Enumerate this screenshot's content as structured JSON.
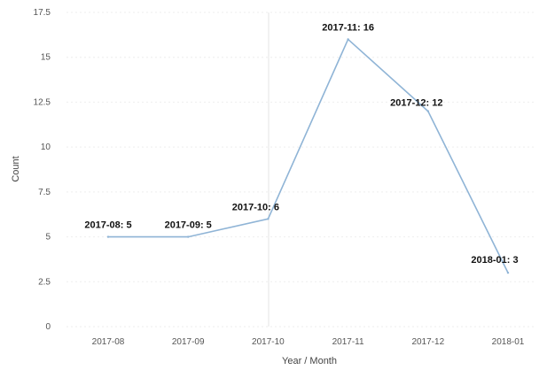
{
  "chart_data": {
    "type": "line",
    "xlabel": "Year / Month",
    "ylabel": "Count",
    "categories": [
      "2017-08",
      "2017-09",
      "2017-10",
      "2017-11",
      "2017-12",
      "2018-01"
    ],
    "series": [
      {
        "values": [
          5,
          5,
          6,
          16,
          12,
          3
        ]
      }
    ],
    "data_labels": [
      "2017-08: 5",
      "2017-09: 5",
      "2017-10: 6",
      "2017-11: 16",
      "2017-12: 12",
      "2018-01: 3"
    ],
    "yticks": [
      "0",
      "2.5",
      "5",
      "7.5",
      "10",
      "12.5",
      "15",
      "17.5"
    ],
    "ylim": [
      0,
      17.5
    ],
    "grid": true,
    "legend": "none",
    "colors": {
      "line": "#8fb4d6"
    }
  }
}
